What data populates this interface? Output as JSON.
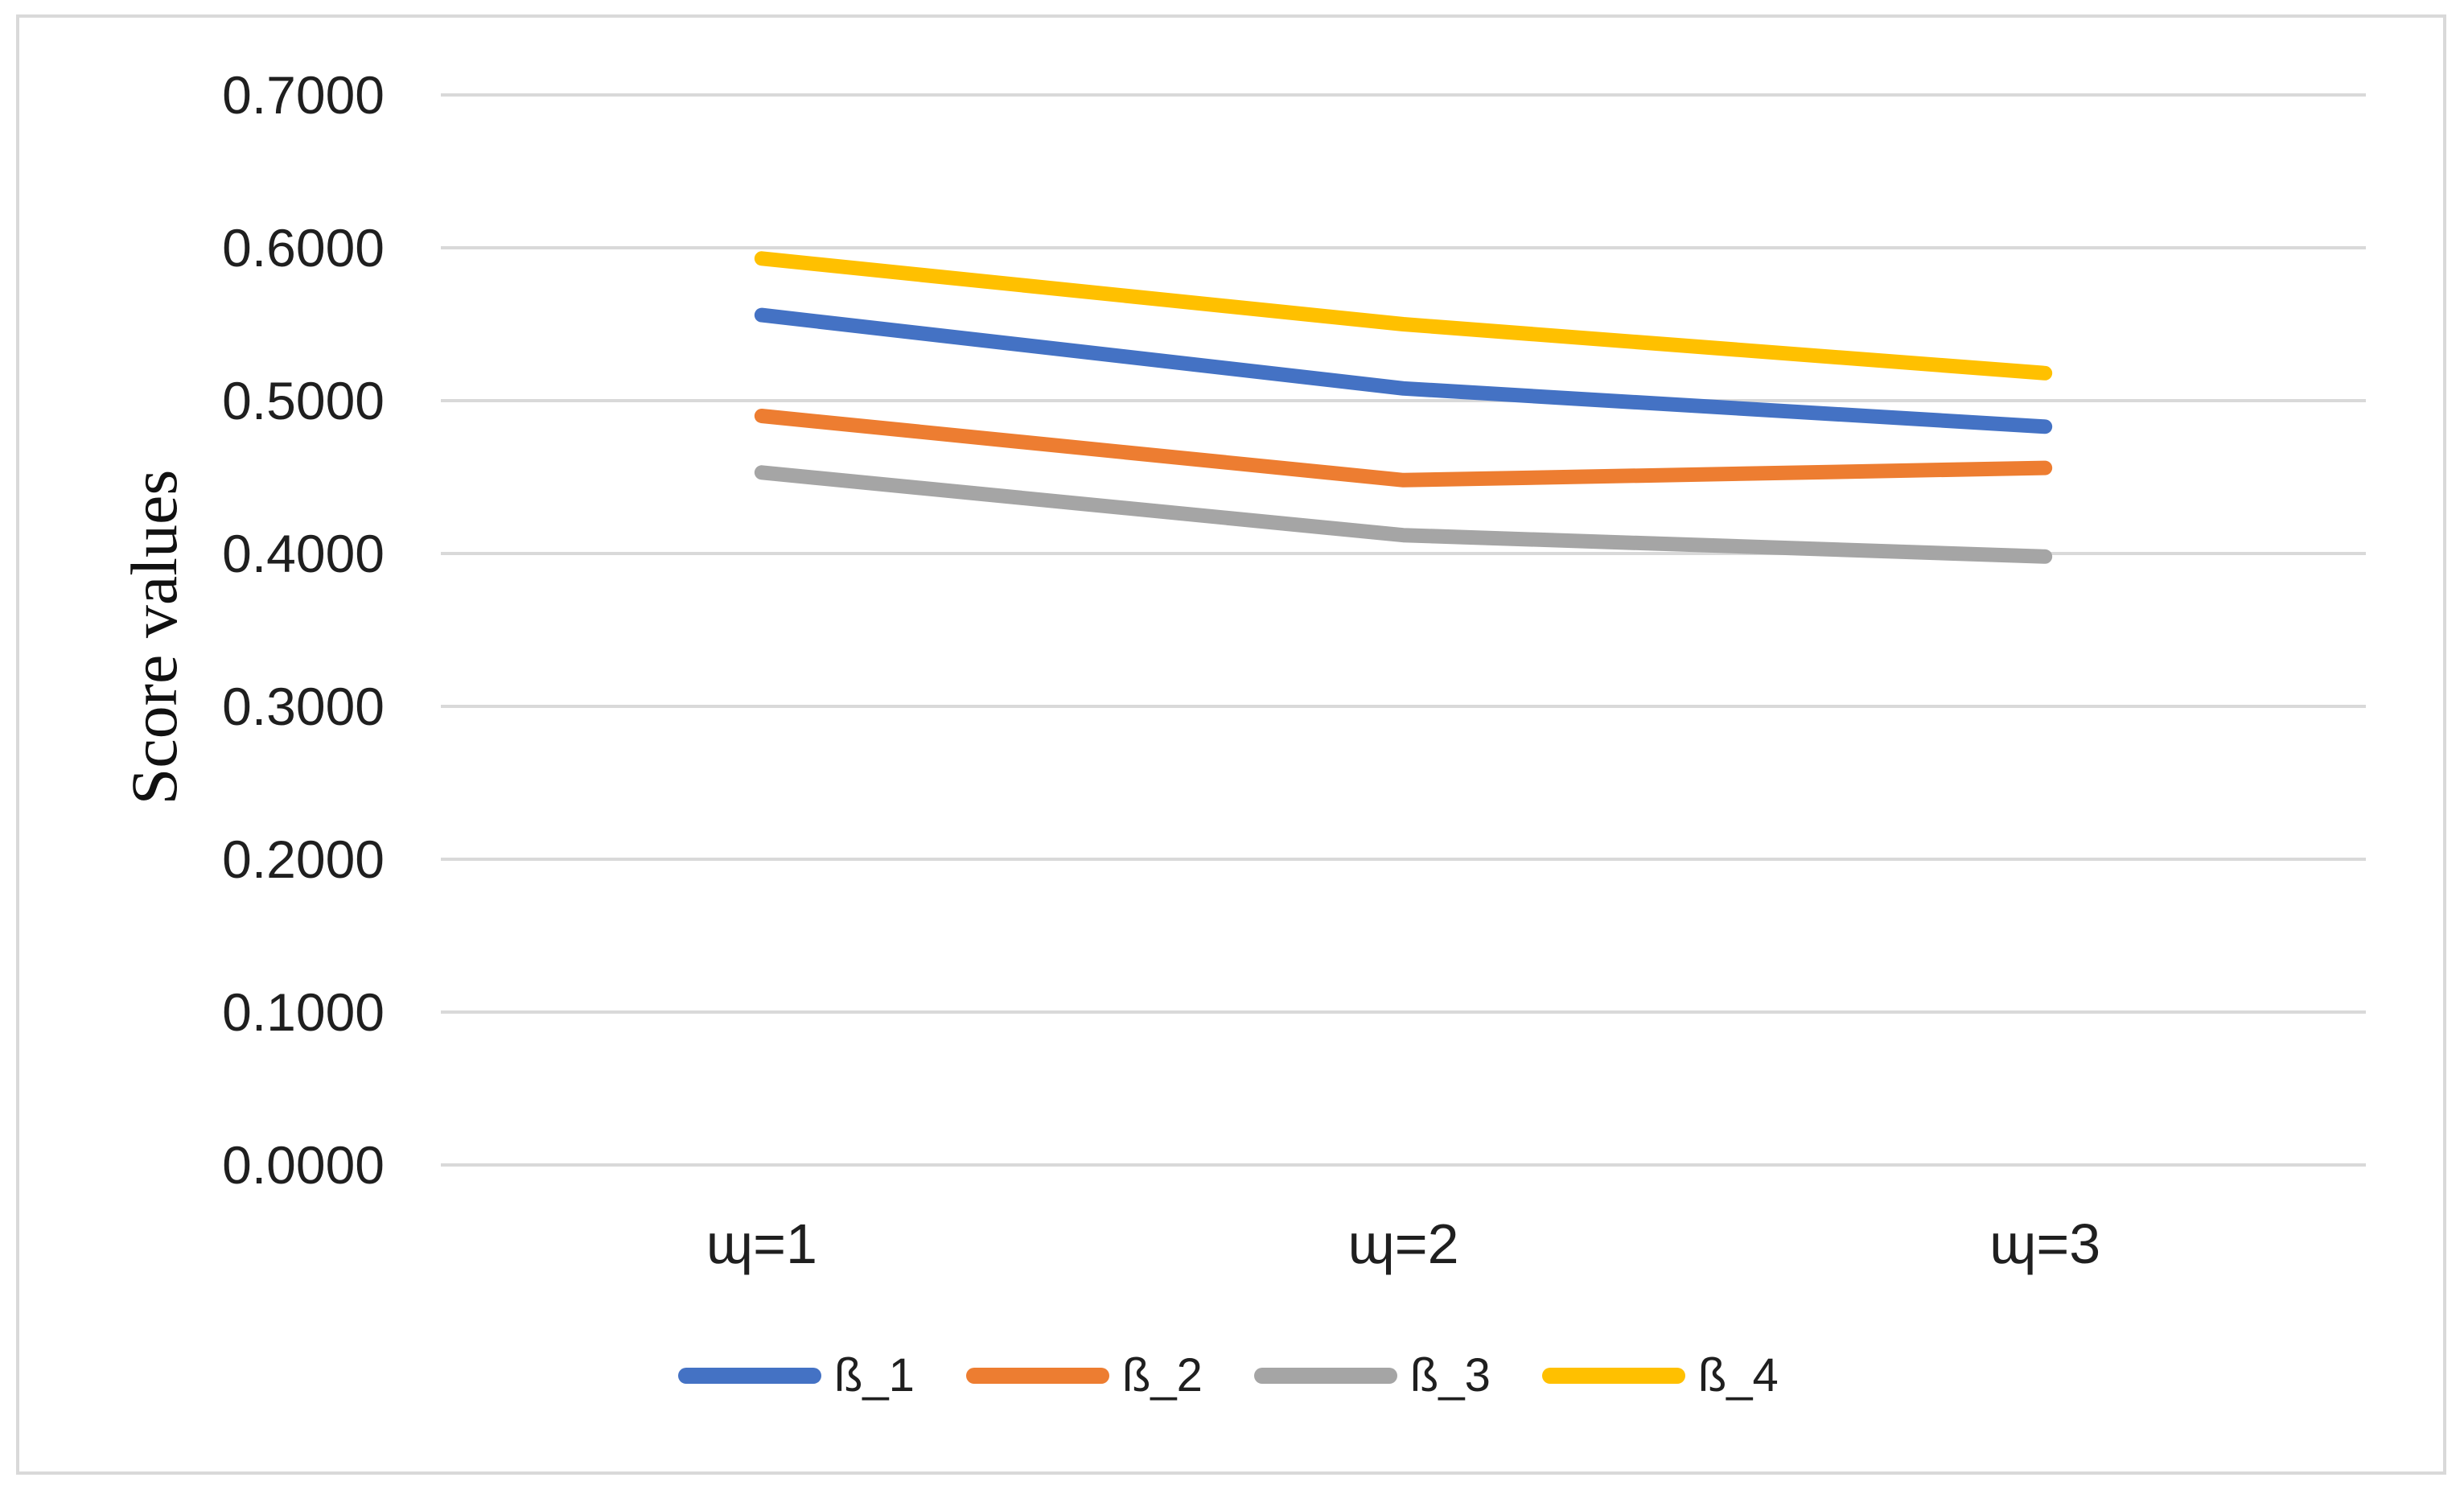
{
  "figure": {
    "background_color": "#FFFFFF",
    "border_color": "#D9D9D9",
    "gridline_color": "#D9D9D9",
    "text_color": "#1F1F1F"
  },
  "chart_data": {
    "type": "line",
    "title": "",
    "xlabel": "",
    "ylabel": "Score values",
    "categories": [
      "ɰ=1",
      "ɰ=2",
      "ɰ=3"
    ],
    "series": [
      {
        "name": "ß_1",
        "color": "#4472C4",
        "values": [
          0.556,
          0.508,
          0.483
        ]
      },
      {
        "name": "ß_2",
        "color": "#ED7D31",
        "values": [
          0.49,
          0.448,
          0.456
        ]
      },
      {
        "name": "ß_3",
        "color": "#A5A5A5",
        "values": [
          0.453,
          0.412,
          0.398
        ]
      },
      {
        "name": "ß_4",
        "color": "#FFC000",
        "values": [
          0.593,
          0.55,
          0.518
        ]
      }
    ],
    "y_ticks": [
      "0.7000",
      "0.6000",
      "0.5000",
      "0.4000",
      "0.3000",
      "0.2000",
      "0.1000",
      "0.0000"
    ],
    "ylim": [
      0.0,
      0.7
    ],
    "grid": true,
    "legend_position": "bottom"
  }
}
